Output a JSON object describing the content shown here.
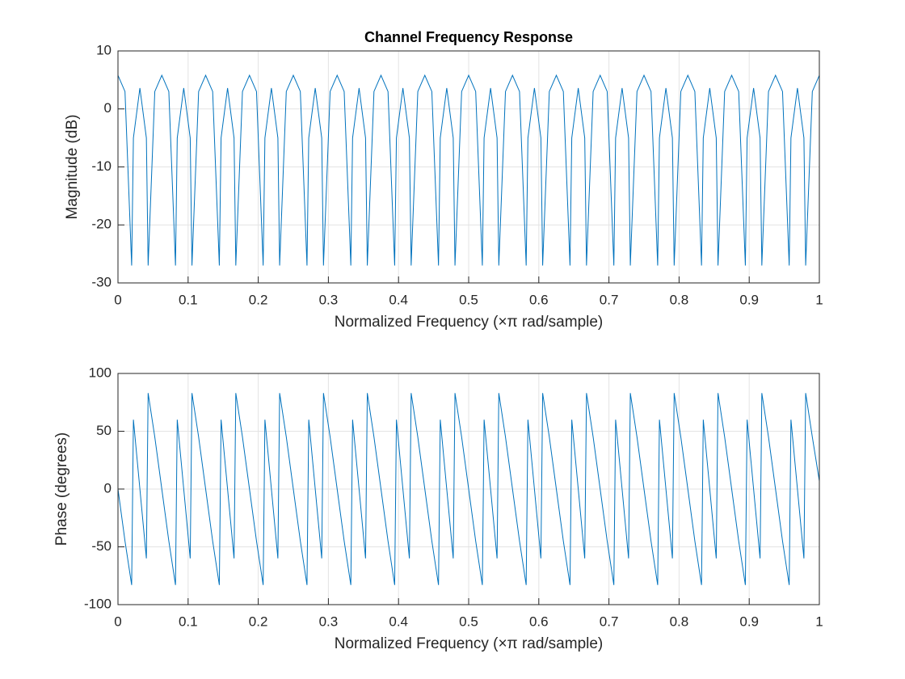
{
  "chart_data": [
    {
      "type": "line",
      "title": "Channel Frequency Response",
      "xlabel": "Normalized Frequency  (×π rad/sample)",
      "ylabel": "Magnitude (dB)",
      "xlim": [
        0,
        1
      ],
      "xticks": [
        0,
        0.1,
        0.2,
        0.3,
        0.4,
        0.5,
        0.6,
        0.7,
        0.8,
        0.9,
        1
      ],
      "ylim": [
        -30,
        10
      ],
      "yticks": [
        -30,
        -20,
        -10,
        0,
        10
      ],
      "grid": true,
      "x": [
        0,
        0.01,
        0.0195,
        0.022,
        0.03125,
        0.0405,
        0.043,
        0.0525,
        0.0625,
        0.0725,
        0.082,
        0.0845,
        0.09375,
        0.103,
        0.1055,
        0.115,
        0.125,
        0.135,
        0.1445,
        0.147,
        0.15625,
        0.1655,
        0.168,
        0.1775,
        0.1875,
        0.1975,
        0.207,
        0.2095,
        0.21875,
        0.228,
        0.2305,
        0.24,
        0.25,
        0.26,
        0.2695,
        0.272,
        0.28125,
        0.2905,
        0.293,
        0.3025,
        0.3125,
        0.3225,
        0.332,
        0.3345,
        0.34375,
        0.353,
        0.3555,
        0.365,
        0.375,
        0.385,
        0.3945,
        0.397,
        0.40625,
        0.4155,
        0.418,
        0.4275,
        0.4375,
        0.4475,
        0.457,
        0.4595,
        0.46875,
        0.478,
        0.4805,
        0.49,
        0.5,
        0.51,
        0.5195,
        0.522,
        0.53125,
        0.5405,
        0.543,
        0.5525,
        0.5625,
        0.5725,
        0.582,
        0.5845,
        0.59375,
        0.603,
        0.6055,
        0.615,
        0.625,
        0.635,
        0.6445,
        0.647,
        0.65625,
        0.6655,
        0.668,
        0.6775,
        0.6875,
        0.6975,
        0.707,
        0.7095,
        0.71875,
        0.728,
        0.7305,
        0.74,
        0.75,
        0.76,
        0.7695,
        0.772,
        0.78125,
        0.7905,
        0.793,
        0.8025,
        0.8125,
        0.8225,
        0.832,
        0.8345,
        0.84375,
        0.853,
        0.8555,
        0.865,
        0.875,
        0.885,
        0.8945,
        0.897,
        0.90625,
        0.9155,
        0.918,
        0.9275,
        0.9375,
        0.9475,
        0.957,
        0.9595,
        0.96875,
        0.978,
        0.9805,
        0.99,
        1
      ],
      "series": [
        {
          "color": "#0072bd",
          "values": [
            5.8,
            3,
            -27,
            -5,
            3.6,
            -5,
            -27,
            3,
            5.8,
            3,
            -27,
            -5,
            3.6,
            -5,
            -27,
            3,
            5.8,
            3,
            -27,
            -5,
            3.6,
            -5,
            -27,
            3,
            5.8,
            3,
            -27,
            -5,
            3.6,
            -5,
            -27,
            3,
            5.8,
            3,
            -27,
            -5,
            3.6,
            -5,
            -27,
            3,
            5.8,
            3,
            -27,
            -5,
            3.6,
            -5,
            -27,
            3,
            5.8,
            3,
            -27,
            -5,
            3.6,
            -5,
            -27,
            3,
            5.8,
            3,
            -27,
            -5,
            3.6,
            -5,
            -27,
            3,
            5.8,
            3,
            -27,
            -5,
            3.6,
            -5,
            -27,
            3,
            5.8,
            3,
            -27,
            -5,
            3.6,
            -5,
            -27,
            3,
            5.8,
            3,
            -27,
            -5,
            3.6,
            -5,
            -27,
            3,
            5.8,
            3,
            -27,
            -5,
            3.6,
            -5,
            -27,
            3,
            5.8,
            3,
            -27,
            -5,
            3.6,
            -5,
            -27,
            3,
            5.8,
            3,
            -27,
            -5,
            3.6,
            -5,
            -27,
            3,
            5.8,
            3,
            -27,
            -5,
            3.6,
            -5,
            -27,
            3,
            5.8,
            3,
            -27,
            -5,
            3.6,
            -5,
            -27,
            3,
            5.8
          ]
        }
      ]
    },
    {
      "type": "line",
      "xlabel": "Normalized Frequency  (×π rad/sample)",
      "ylabel": "Phase (degrees)",
      "xlim": [
        0,
        1
      ],
      "xticks": [
        0,
        0.1,
        0.2,
        0.3,
        0.4,
        0.5,
        0.6,
        0.7,
        0.8,
        0.9,
        1
      ],
      "ylim": [
        -100,
        100
      ],
      "yticks": [
        -100,
        -50,
        0,
        50,
        100
      ],
      "grid": true,
      "x": [
        0,
        0.01,
        0.0195,
        0.022,
        0.03125,
        0.0405,
        0.043,
        0.0525,
        0.0625,
        0.0725,
        0.082,
        0.0845,
        0.09375,
        0.103,
        0.1055,
        0.115,
        0.125,
        0.135,
        0.1445,
        0.147,
        0.15625,
        0.1655,
        0.168,
        0.1775,
        0.1875,
        0.1975,
        0.207,
        0.2095,
        0.21875,
        0.228,
        0.2305,
        0.24,
        0.25,
        0.26,
        0.2695,
        0.272,
        0.28125,
        0.2905,
        0.293,
        0.3025,
        0.3125,
        0.3225,
        0.332,
        0.3345,
        0.34375,
        0.353,
        0.3555,
        0.365,
        0.375,
        0.385,
        0.3945,
        0.397,
        0.40625,
        0.4155,
        0.418,
        0.4275,
        0.4375,
        0.4475,
        0.457,
        0.4595,
        0.46875,
        0.478,
        0.4805,
        0.49,
        0.5,
        0.51,
        0.5195,
        0.522,
        0.53125,
        0.5405,
        0.543,
        0.5525,
        0.5625,
        0.5725,
        0.582,
        0.5845,
        0.59375,
        0.603,
        0.6055,
        0.615,
        0.625,
        0.635,
        0.6445,
        0.647,
        0.65625,
        0.6655,
        0.668,
        0.6775,
        0.6875,
        0.6975,
        0.707,
        0.7095,
        0.71875,
        0.728,
        0.7305,
        0.74,
        0.75,
        0.76,
        0.7695,
        0.772,
        0.78125,
        0.7905,
        0.793,
        0.8025,
        0.8125,
        0.8225,
        0.832,
        0.8345,
        0.84375,
        0.853,
        0.8555,
        0.865,
        0.875,
        0.885,
        0.8945,
        0.897,
        0.90625,
        0.9155,
        0.918,
        0.9275,
        0.9375,
        0.9475,
        0.957,
        0.9595,
        0.96875,
        0.978,
        0.9805,
        0.99,
        1
      ],
      "series": [
        {
          "color": "#0072bd",
          "values": [
            0,
            -45,
            -83,
            60,
            0,
            -60,
            83,
            45,
            0,
            -45,
            -83,
            60,
            0,
            -60,
            83,
            45,
            0,
            -45,
            -83,
            60,
            0,
            -60,
            83,
            45,
            0,
            -45,
            -83,
            60,
            0,
            -60,
            83,
            45,
            0,
            -45,
            -83,
            60,
            0,
            -60,
            83,
            45,
            0,
            -45,
            -83,
            60,
            0,
            -60,
            83,
            45,
            0,
            -45,
            -83,
            60,
            0,
            -60,
            83,
            45,
            0,
            -45,
            -83,
            60,
            0,
            -60,
            83,
            45,
            0,
            -45,
            -83,
            60,
            0,
            -60,
            83,
            45,
            0,
            -45,
            -83,
            60,
            0,
            -60,
            83,
            45,
            0,
            -45,
            -83,
            60,
            0,
            -60,
            83,
            45,
            0,
            -45,
            -83,
            60,
            0,
            -60,
            83,
            45,
            0,
            -45,
            -83,
            60,
            0,
            -60,
            83,
            45,
            0,
            -45,
            -83,
            60,
            0,
            -60,
            83,
            45,
            0,
            -45,
            -83,
            60,
            0,
            -60,
            83,
            45,
            0,
            -45,
            -83,
            60,
            0,
            -60,
            83,
            45,
            7
          ]
        }
      ]
    }
  ]
}
